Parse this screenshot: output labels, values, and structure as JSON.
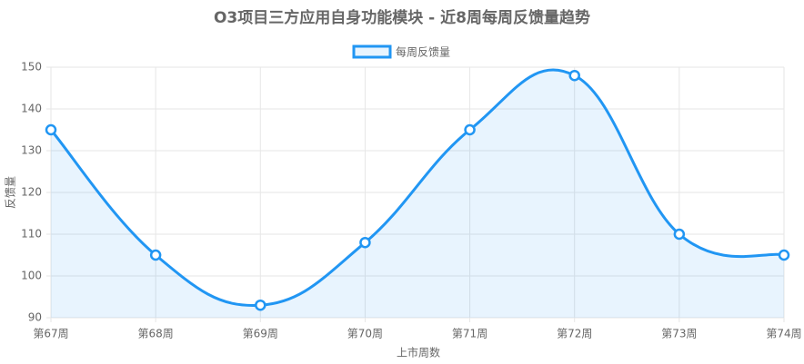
{
  "chart_data": {
    "type": "line",
    "title": "O3项目三方应用自身功能模块 - 近8周每周反馈量趋势",
    "x_label": "上市周数",
    "y_label": "反馈量",
    "categories": [
      "第67周",
      "第68周",
      "第69周",
      "第70周",
      "第71周",
      "第72周",
      "第73周",
      "第74周"
    ],
    "series": [
      {
        "name": "每周反馈量",
        "color": "#2196f3",
        "values": [
          135,
          105,
          93,
          108,
          135,
          148,
          110,
          105
        ]
      }
    ],
    "ylim": [
      90,
      150
    ],
    "yticks": [
      90,
      100,
      110,
      120,
      130,
      140,
      150
    ],
    "grid": true,
    "fill": true,
    "legend": "top"
  }
}
